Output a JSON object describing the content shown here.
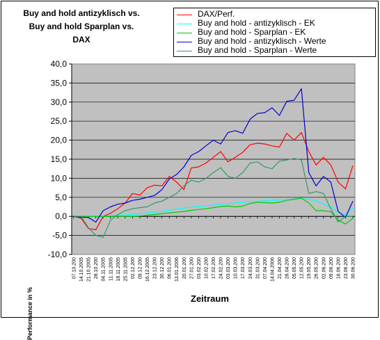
{
  "chart_data": {
    "type": "line",
    "title_lines": [
      "Buy and hold antizyklisch vs.",
      "Buy and hold Sparplan vs.",
      "DAX"
    ],
    "xlabel": "Zeitraum",
    "ylabel": "Performance in %",
    "ylim": [
      -10,
      40
    ],
    "yticks": [
      "-10,0",
      "-5,0",
      "0,0",
      "5,0",
      "10,0",
      "15,0",
      "20,0",
      "25,0",
      "30,0",
      "35,0",
      "40,0"
    ],
    "ytick_values": [
      -10,
      -5,
      0,
      5,
      10,
      15,
      20,
      25,
      30,
      35,
      40
    ],
    "grid": true,
    "legend_position": "top-right",
    "x_dates": [
      "07.10.200",
      "14.10.2005",
      "21.10.2005",
      "28.10.200",
      "04.11.2005",
      "11.11.2005",
      "18.11.2005",
      "25.11.2005",
      "02.12.200",
      "09.12.200",
      "16.12.2005",
      "23.12.200",
      "30.12.200",
      "06.01.200",
      "13.01.2006",
      "20.01.200",
      "27.01.200",
      "03.02.200",
      "10.02.200",
      "17.02.200",
      "24.02.200",
      "03.03.200",
      "10.03.200",
      "17.03.200",
      "24.03.200",
      "31.03.200",
      "07.04.200",
      "14.04.2006",
      "21.04.200",
      "28.04.200",
      "05.05.200",
      "12.05.200",
      "19.05.200",
      "26.05.200",
      "02.06.200",
      "09.06.200",
      "16.06.200",
      "23.06.200",
      "30.06.200"
    ],
    "series": [
      {
        "name": "DAX/Perf.",
        "color": "#ff0000",
        "values": [
          0.0,
          -0.5,
          -3.2,
          -3.5,
          0.0,
          0.8,
          2.0,
          3.5,
          6.0,
          5.6,
          7.5,
          8.2,
          8.0,
          10.5,
          9.0,
          7.0,
          12.7,
          13.0,
          14.0,
          15.5,
          17.0,
          14.3,
          15.5,
          16.8,
          18.8,
          19.2,
          19.0,
          18.5,
          18.2,
          21.8,
          20.0,
          22.0,
          17.0,
          13.5,
          15.5,
          13.5,
          9.0,
          7.2,
          13.3
        ]
      },
      {
        "name": "Buy and hold  - antizyklisch - EK",
        "color": "#00ffff",
        "values": [
          0.0,
          0.0,
          0.0,
          0.0,
          0.0,
          0.2,
          0.3,
          0.4,
          0.5,
          0.7,
          0.9,
          1.1,
          1.3,
          1.6,
          1.9,
          2.2,
          2.4,
          2.6,
          2.8,
          3.0,
          3.2,
          3.3,
          3.5,
          3.7,
          3.9,
          4.0,
          4.1,
          4.2,
          4.3,
          4.4,
          4.5,
          4.6,
          4.5,
          4.1,
          3.2,
          2.6,
          1.0,
          0.5,
          2.2
        ]
      },
      {
        "name": "Buy and hold - Sparplan - EK",
        "color": "#00cc00",
        "values": [
          0.0,
          0.0,
          0.0,
          0.0,
          0.0,
          0.0,
          0.0,
          0.0,
          0.0,
          0.1,
          0.3,
          0.5,
          0.7,
          0.9,
          1.1,
          1.3,
          1.6,
          1.8,
          2.0,
          2.3,
          2.6,
          2.7,
          2.5,
          2.7,
          3.4,
          3.7,
          3.6,
          3.5,
          3.7,
          4.2,
          4.5,
          4.8,
          3.5,
          1.5,
          1.5,
          1.2,
          -1.0,
          -2.0,
          -0.5
        ]
      },
      {
        "name": "Buy and hold - antizyklisch - Werte",
        "color": "#0000cc",
        "values": [
          0.0,
          -0.2,
          -0.3,
          -1.5,
          1.5,
          2.5,
          3.2,
          3.5,
          4.2,
          4.5,
          5.0,
          5.5,
          7.0,
          9.8,
          11.0,
          13.0,
          16.0,
          17.0,
          18.5,
          20.0,
          19.0,
          22.0,
          22.5,
          21.8,
          25.5,
          27.0,
          27.2,
          28.5,
          26.5,
          30.2,
          30.5,
          33.5,
          11.5,
          8.0,
          10.5,
          9.0,
          1.3,
          -0.3,
          4.0
        ]
      },
      {
        "name": "Buy and hold - Sparplan - Werte",
        "color": "#339966",
        "values": [
          0.0,
          0.0,
          -3.0,
          -5.0,
          -5.5,
          -1.0,
          0.5,
          1.5,
          2.0,
          2.3,
          2.5,
          3.5,
          4.0,
          5.0,
          6.0,
          8.0,
          9.5,
          9.0,
          10.0,
          11.5,
          12.8,
          10.5,
          10.0,
          11.5,
          14.0,
          14.3,
          13.0,
          12.5,
          14.5,
          14.8,
          15.2,
          14.8,
          6.0,
          6.5,
          6.0,
          2.0,
          -1.5,
          0.0,
          0.0
        ]
      }
    ]
  }
}
